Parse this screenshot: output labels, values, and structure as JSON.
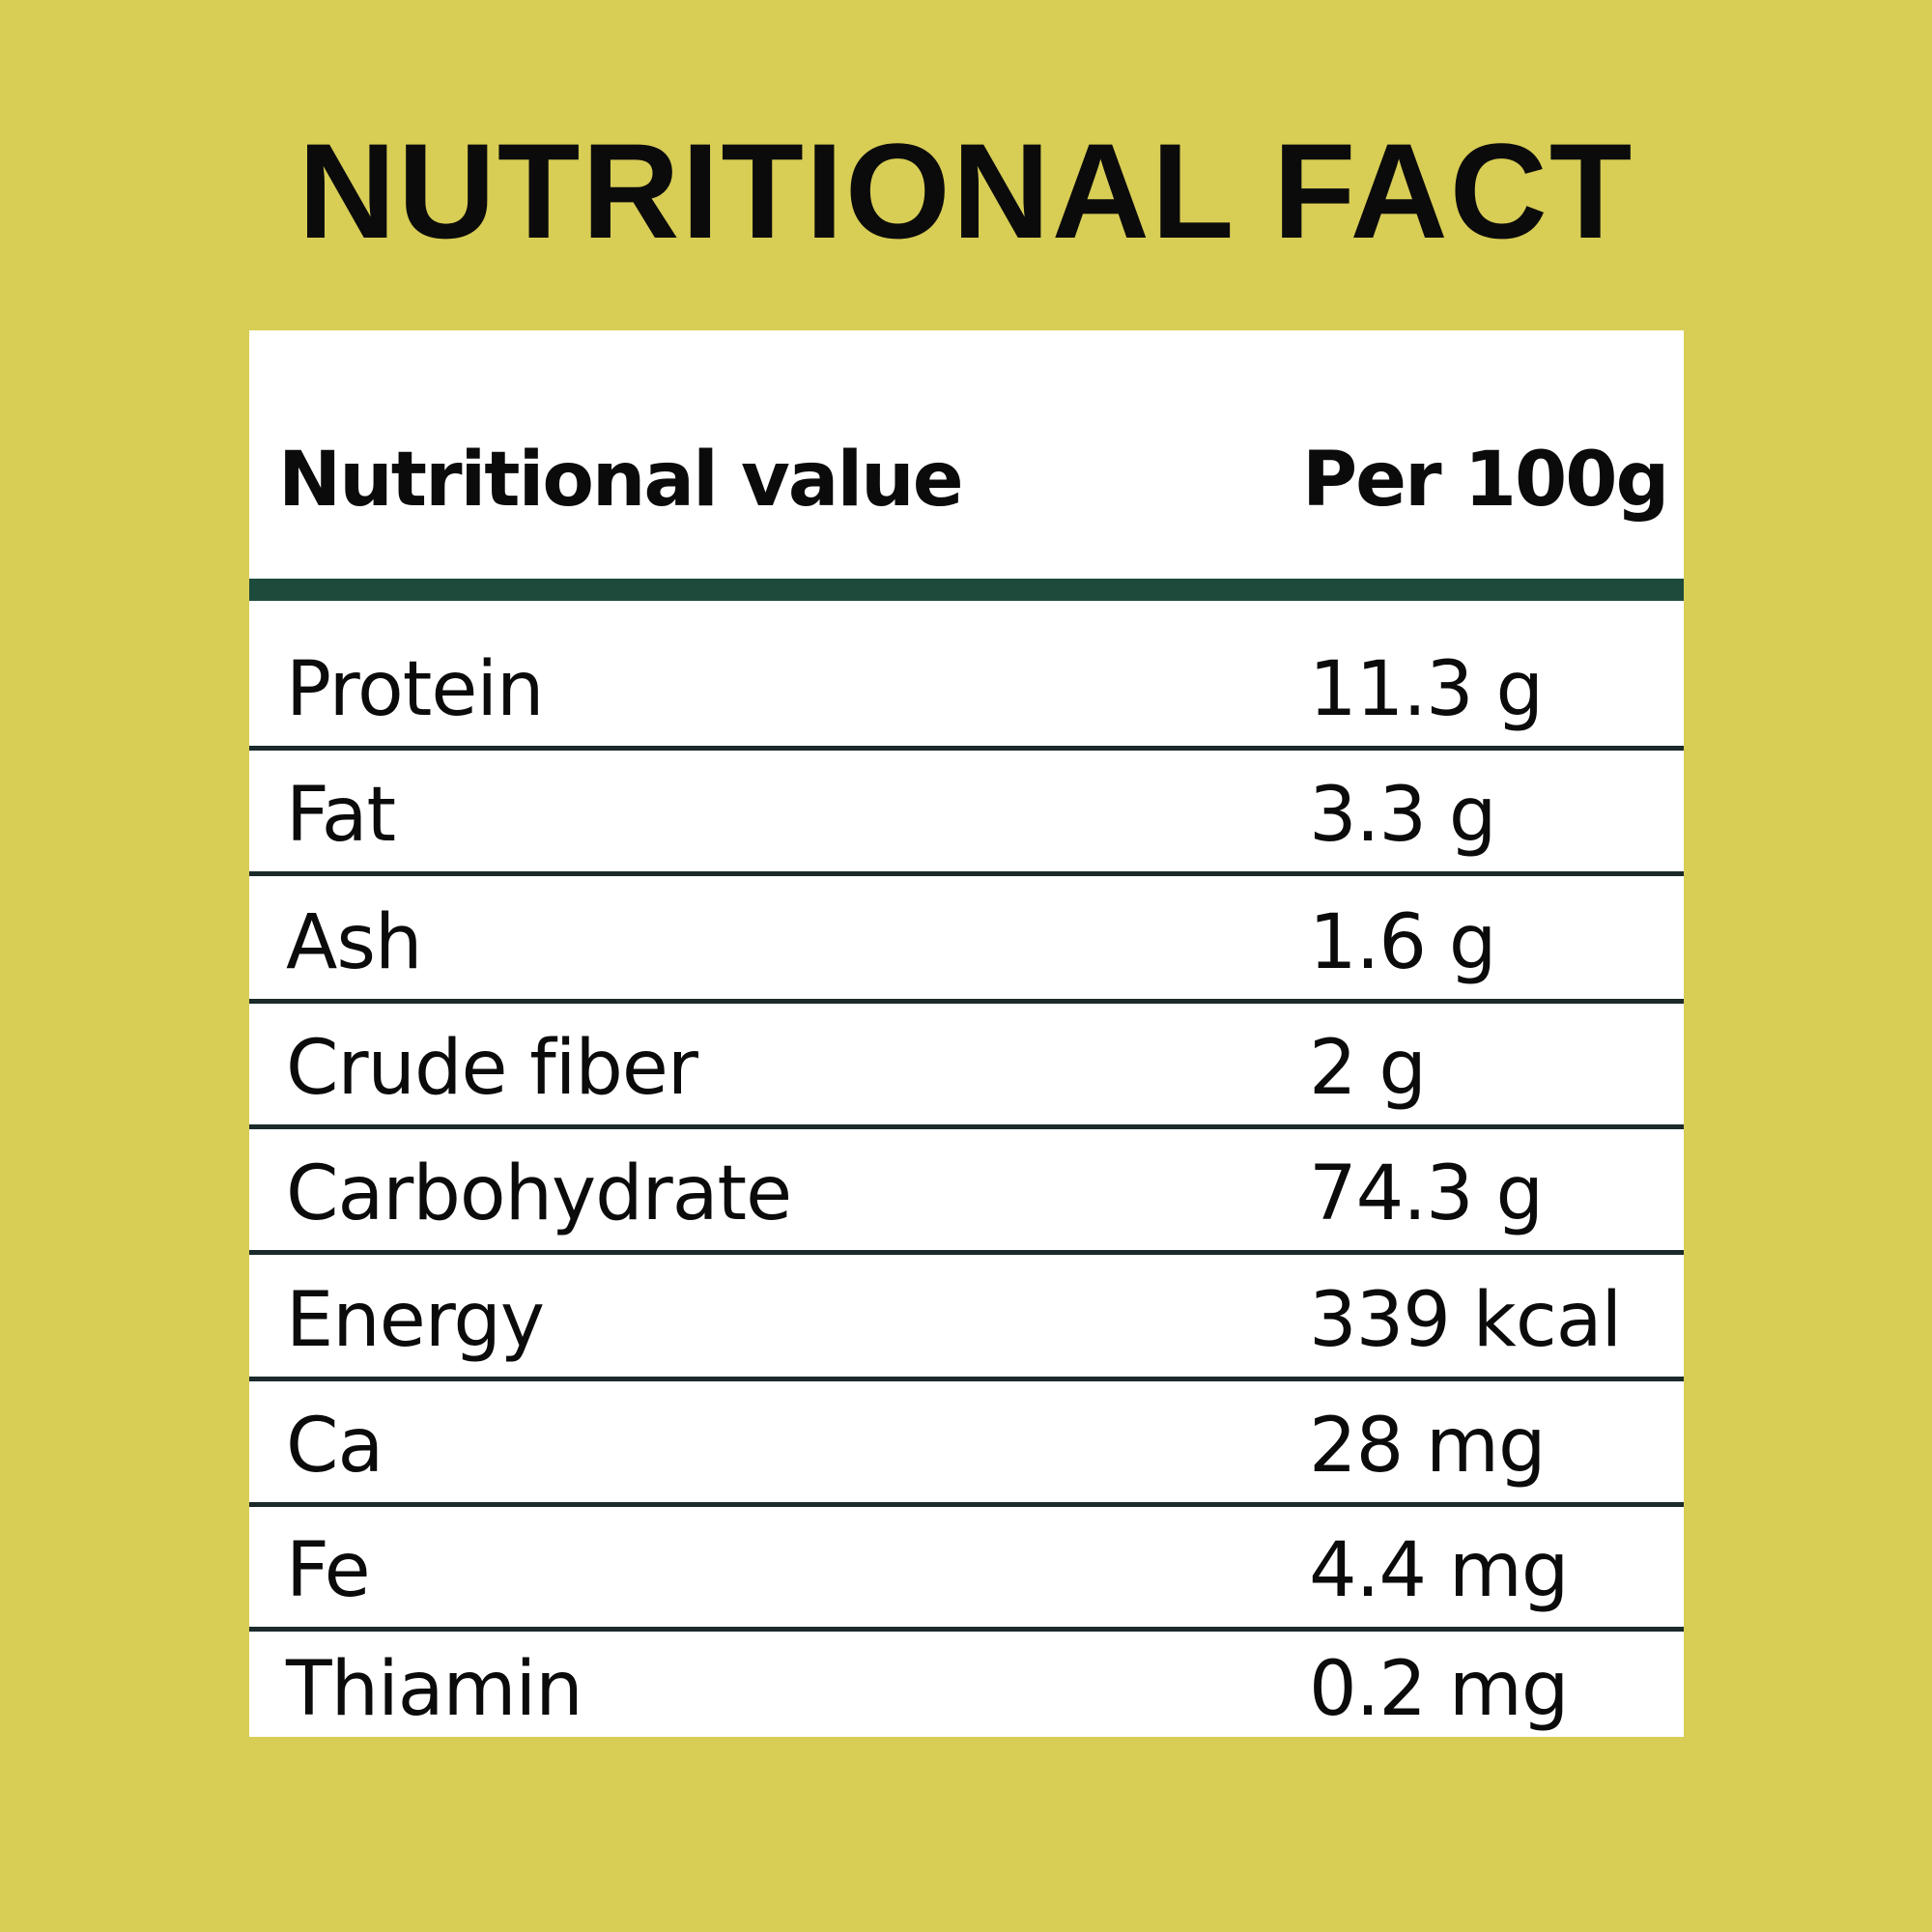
{
  "title": "NUTRITIONAL FACT",
  "table": {
    "header": {
      "name": "Nutritional value",
      "amount": "Per 100g"
    },
    "rows": [
      {
        "name": "Protein",
        "amount": "11.3 g"
      },
      {
        "name": "Fat",
        "amount": "3.3 g"
      },
      {
        "name": "Ash",
        "amount": "1.6 g"
      },
      {
        "name": "Crude fiber",
        "amount": "2 g"
      },
      {
        "name": "Carbohydrate",
        "amount": "74.3 g"
      },
      {
        "name": "Energy",
        "amount": "339 kcal"
      },
      {
        "name": "Ca",
        "amount": "28 mg"
      },
      {
        "name": "Fe",
        "amount": "4.4 mg"
      },
      {
        "name": "Thiamin",
        "amount": "0.2 mg"
      }
    ]
  },
  "colors": {
    "background": "#d8cd55",
    "header_bar": "#1e4a3c",
    "card": "#ffffff"
  }
}
